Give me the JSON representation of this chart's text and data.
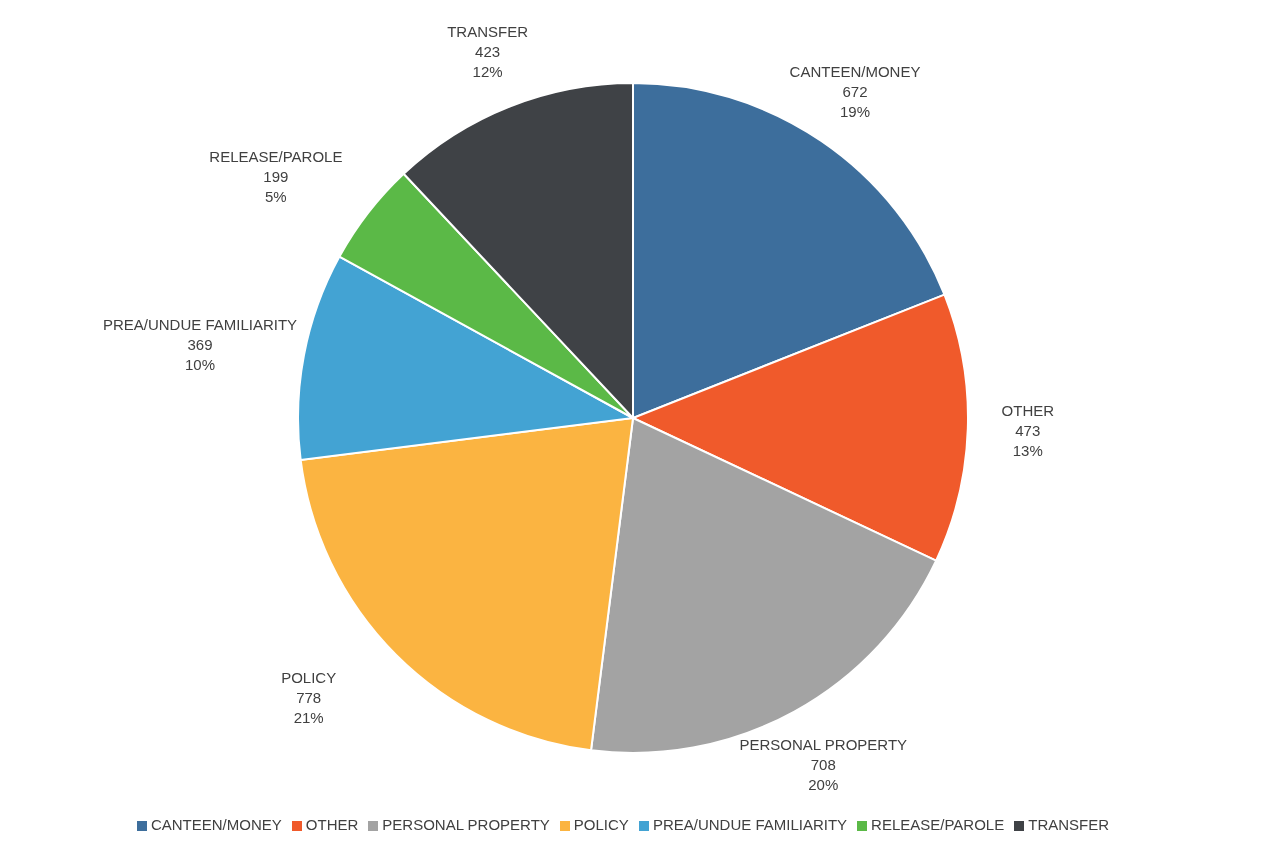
{
  "chart_data": {
    "type": "pie",
    "categories": [
      "CANTEEN/MONEY",
      "OTHER",
      "PERSONAL PROPERTY",
      "POLICY",
      "PREA/UNDUE FAMILIARITY",
      "RELEASE/PAROLE",
      "TRANSFER"
    ],
    "values": [
      19,
      13,
      20,
      21,
      10,
      5,
      12
    ],
    "value_labels": [
      "672\n19%",
      "473\n13%",
      "708\n20%",
      "778\n21%",
      "369\n10%",
      "199\n5%",
      "423\n12%"
    ],
    "colors": [
      "#3d6e9c",
      "#f05a2b",
      "#a3a3a3",
      "#fbb441",
      "#43a3d3",
      "#5bb947",
      "#3f4246"
    ],
    "legend": "bottom"
  }
}
